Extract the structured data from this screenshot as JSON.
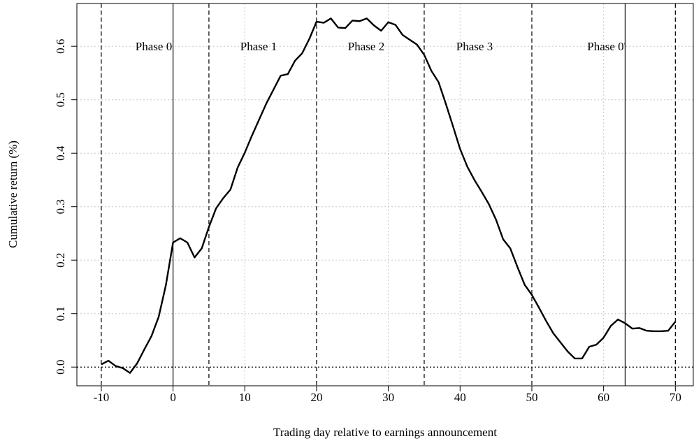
{
  "chart_data": {
    "type": "line",
    "x_label": "Trading day relative to earnings announcement",
    "y_label": "Cumulative return (%)",
    "x": [
      -10,
      -9,
      -8,
      -7,
      -6,
      -5,
      -4,
      -3,
      -2,
      -1,
      0,
      1,
      2,
      3,
      4,
      5,
      6,
      7,
      8,
      9,
      10,
      11,
      12,
      13,
      14,
      15,
      16,
      17,
      18,
      19,
      20,
      21,
      22,
      23,
      24,
      25,
      26,
      27,
      28,
      29,
      30,
      31,
      32,
      33,
      34,
      35,
      36,
      37,
      38,
      39,
      40,
      41,
      42,
      43,
      44,
      45,
      46,
      47,
      48,
      49,
      50,
      51,
      52,
      53,
      54,
      55,
      56,
      57,
      58,
      59,
      60,
      61,
      62,
      63,
      64,
      65,
      66,
      67,
      68,
      69,
      70
    ],
    "series": [
      {
        "name": "Cumulative return",
        "color": "#000000",
        "values": [
          0.005,
          0.012,
          0.002,
          -0.002,
          -0.011,
          0.007,
          0.033,
          0.058,
          0.094,
          0.153,
          0.233,
          0.241,
          0.233,
          0.205,
          0.222,
          0.262,
          0.297,
          0.316,
          0.332,
          0.373,
          0.401,
          0.433,
          0.463,
          0.493,
          0.519,
          0.545,
          0.548,
          0.573,
          0.587,
          0.614,
          0.646,
          0.644,
          0.652,
          0.635,
          0.634,
          0.648,
          0.647,
          0.652,
          0.639,
          0.629,
          0.645,
          0.64,
          0.621,
          0.612,
          0.603,
          0.584,
          0.554,
          0.533,
          0.493,
          0.451,
          0.408,
          0.375,
          0.35,
          0.328,
          0.305,
          0.276,
          0.239,
          0.222,
          0.187,
          0.154,
          0.135,
          0.111,
          0.086,
          0.063,
          0.046,
          0.029,
          0.016,
          0.016,
          0.038,
          0.042,
          0.055,
          0.077,
          0.089,
          0.082,
          0.072,
          0.073,
          0.068,
          0.067,
          0.067,
          0.068,
          0.085
        ]
      }
    ],
    "xlim": [
      -13.4,
      72.5
    ],
    "ylim": [
      -0.035,
      0.68
    ],
    "xticks": [
      -10,
      0,
      10,
      20,
      30,
      40,
      50,
      60,
      70
    ],
    "yticks": [
      {
        "value": 0,
        "label": "0.0"
      },
      0.1,
      0.2,
      0.3,
      0.4,
      0.5,
      0.6
    ],
    "grid": true,
    "vlines": [
      {
        "x": -10,
        "style": "dashed"
      },
      {
        "x": 0,
        "style": "solid"
      },
      {
        "x": 5,
        "style": "dashed"
      },
      {
        "x": 20,
        "style": "dashed"
      },
      {
        "x": 35,
        "style": "dashed"
      },
      {
        "x": 50,
        "style": "dashed"
      },
      {
        "x": 63,
        "style": "solid"
      },
      {
        "x": 70,
        "style": "dashed"
      }
    ],
    "hlines": [
      {
        "y": 0,
        "style": "dotted"
      }
    ],
    "annotations": [
      "Phase 0",
      "Phase 1",
      "Phase 2",
      "Phase 3",
      "Phase 0'"
    ]
  }
}
